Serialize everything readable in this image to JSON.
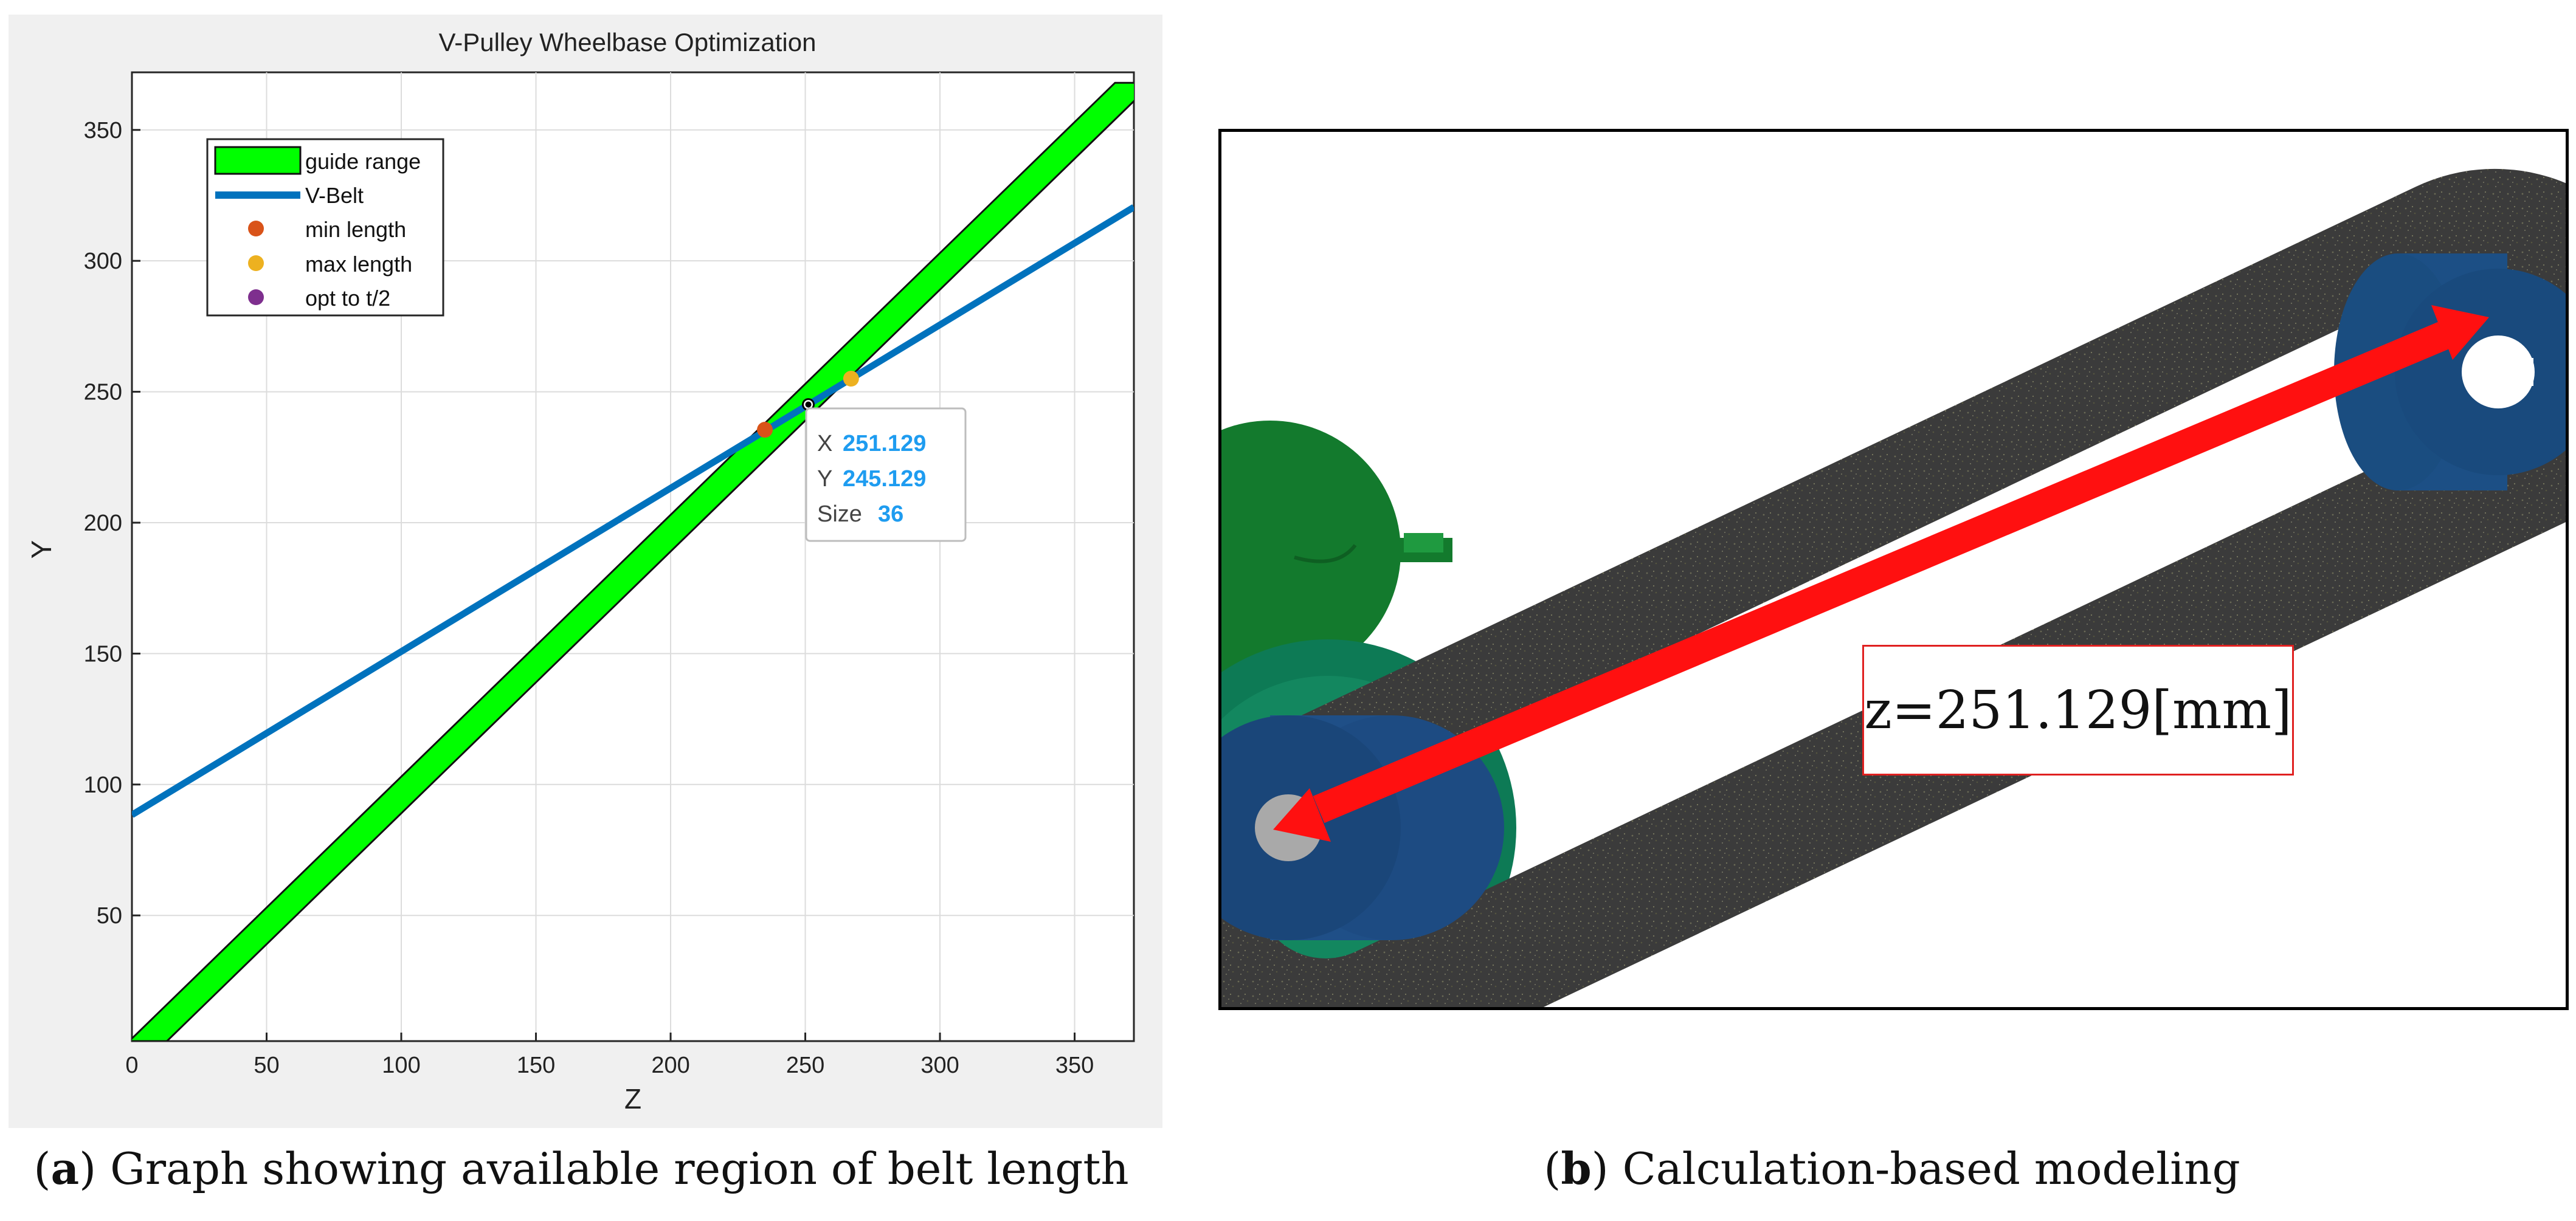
{
  "chart_data": {
    "type": "line",
    "title": "V-Pulley Wheelbase Optimization",
    "xlabel": "Z",
    "ylabel": "Y",
    "xlim": [
      0,
      372
    ],
    "ylim": [
      2,
      372
    ],
    "xticks": [
      0,
      50,
      100,
      150,
      200,
      250,
      300,
      350
    ],
    "yticks": [
      50,
      100,
      150,
      200,
      250,
      300,
      350
    ],
    "grid": true,
    "legend_position": "top-left",
    "series": [
      {
        "name": "guide range",
        "kind": "band",
        "color": "#00ff00",
        "x": [
          6,
          372
        ],
        "y": [
          2,
          368
        ],
        "band_width": 14
      },
      {
        "name": "V-Belt",
        "kind": "line",
        "color": "#0072bd",
        "x": [
          0,
          372
        ],
        "y": [
          88.4,
          320.5
        ]
      },
      {
        "name": "min length",
        "kind": "point",
        "color": "#d95319",
        "x": [
          235
        ],
        "y": [
          235.5
        ]
      },
      {
        "name": "max length",
        "kind": "point",
        "color": "#edb120",
        "x": [
          267
        ],
        "y": [
          255
        ]
      },
      {
        "name": "opt to t/2",
        "kind": "point",
        "color": "#7e2f8e",
        "x": [
          251.129
        ],
        "y": [
          245.129
        ]
      }
    ],
    "datatip": {
      "x_label": "X",
      "x_value": "251.129",
      "y_label": "Y",
      "y_value": "245.129",
      "size_label": "Size",
      "size_value": "36"
    }
  },
  "model": {
    "label": "z=251.129[mm]"
  },
  "captions": {
    "a_letter": "a",
    "a_text": " Graph showing available region of belt length",
    "b_letter": "b",
    "b_text": " Calculation-based modeling"
  }
}
